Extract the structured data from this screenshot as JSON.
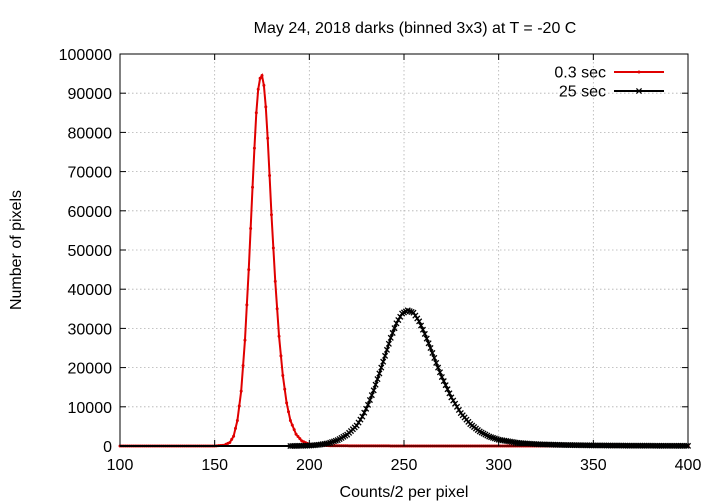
{
  "chart_data": {
    "type": "line",
    "title": "May 24, 2018 darks (binned 3x3) at T = -20 C",
    "xlabel": "Counts/2 per pixel",
    "ylabel": "Number of pixels",
    "xlim": [
      100,
      400
    ],
    "ylim": [
      0,
      100000
    ],
    "xticks": [
      100,
      150,
      200,
      250,
      300,
      350,
      400
    ],
    "yticks": [
      0,
      10000,
      20000,
      30000,
      40000,
      50000,
      60000,
      70000,
      80000,
      90000,
      100000
    ],
    "grid": true,
    "legend_position": "top-right",
    "series": [
      {
        "name": "0.3 sec",
        "color": "#e00000",
        "marker": "dot",
        "x": [
          100,
          150,
          155,
          158,
          160,
          162,
          164,
          166,
          168,
          170,
          171,
          172,
          173,
          174,
          175,
          176,
          177,
          178,
          179,
          180,
          182,
          184,
          186,
          188,
          190,
          193,
          196,
          200,
          210,
          230,
          260,
          300,
          400
        ],
        "y": [
          0,
          0,
          200,
          900,
          2500,
          6500,
          14000,
          27000,
          45000,
          66000,
          76000,
          85000,
          91000,
          93800,
          94500,
          92000,
          86500,
          78500,
          69000,
          59000,
          42000,
          28000,
          18000,
          11000,
          6500,
          3000,
          1300,
          400,
          80,
          20,
          10,
          0,
          0
        ]
      },
      {
        "name": "25 sec",
        "color": "#000000",
        "marker": "x",
        "x": [
          190,
          200,
          205,
          210,
          215,
          220,
          225,
          228,
          231,
          234,
          237,
          240,
          243,
          246,
          249,
          252,
          255,
          258,
          261,
          264,
          267,
          270,
          275,
          280,
          285,
          290,
          295,
          300,
          310,
          320,
          335,
          350,
          370,
          400
        ],
        "y": [
          0,
          100,
          300,
          700,
          1500,
          2900,
          5200,
          7500,
          10500,
          14200,
          18500,
          23000,
          27600,
          31300,
          33800,
          34600,
          34000,
          31800,
          28600,
          25000,
          21200,
          17600,
          12400,
          8400,
          5600,
          3700,
          2400,
          1600,
          800,
          450,
          250,
          150,
          80,
          40
        ]
      }
    ]
  }
}
